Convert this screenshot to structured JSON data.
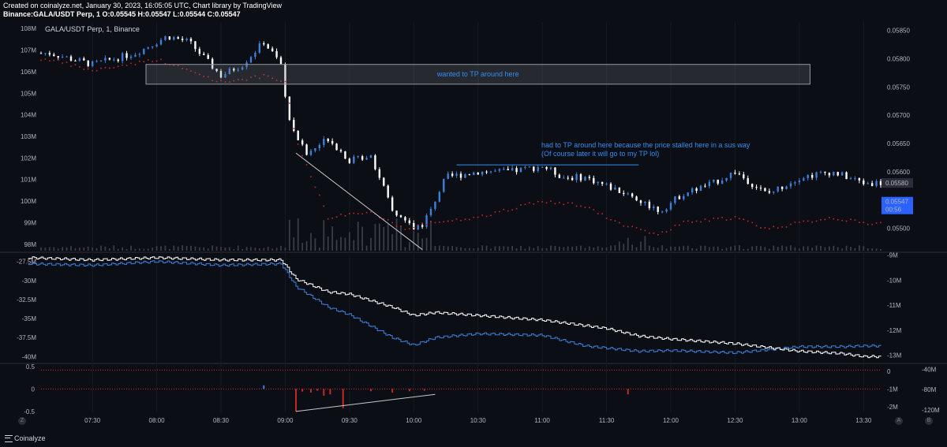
{
  "header": {
    "line1": "Created on coinalyze.net, January 30, 2023, 16:05:05 UTC, Chart library by TradingView",
    "line2": "Binance:GALA/USDT Perp, 1 O:0.05545 H:0.05547 L:0.05544 C:0.05547"
  },
  "brand": {
    "label": "Coinalyze"
  },
  "corner_buttons": {
    "left": "Z",
    "auto": "A",
    "log": "B"
  },
  "colors": {
    "up": "#3d7fd9",
    "down": "#ffffff",
    "oi": "#ffffff",
    "cvd": "#3d7fd9",
    "red": "#c62828",
    "note": "#2f8ef0",
    "bg": "#0c0e15"
  },
  "chart_data": [
    {
      "type": "candlestick",
      "symbol_label": "GALA/USDT Perp, 1, Binance",
      "ylim": [
        0.0546,
        0.05865
      ],
      "y_ticks": [
        "0.05850",
        "0.05800",
        "0.05750",
        "0.05700",
        "0.05650",
        "0.05600",
        "0.05500"
      ],
      "y_tick_values": [
        0.0585,
        0.058,
        0.0575,
        0.057,
        0.0565,
        0.056,
        0.055
      ],
      "left_axis_ticks": [
        "108M",
        "107M",
        "106M",
        "105M",
        "104M",
        "103M",
        "102M",
        "101M",
        "100M",
        "99M",
        "98M"
      ],
      "left_axis_values": [
        108,
        107,
        106,
        105,
        104,
        103,
        102,
        101,
        100,
        99,
        98
      ],
      "last_price_label": "0.05580",
      "current_price_label": "0.05547",
      "countdown": "00:56",
      "x_ticks": [
        "07:30",
        "08:00",
        "08:30",
        "09:00",
        "09:30",
        "10:00",
        "10:30",
        "11:00",
        "11:30",
        "12:00",
        "12:30",
        "13:00",
        "13:30"
      ],
      "price_path": [
        [
          "07:10",
          0.0581
        ],
        [
          "07:30",
          0.0579
        ],
        [
          "07:50",
          0.0581
        ],
        [
          "08:05",
          0.0584
        ],
        [
          "08:15",
          0.0583
        ],
        [
          "08:30",
          0.0577
        ],
        [
          "08:40",
          0.0579
        ],
        [
          "08:50",
          0.0583
        ],
        [
          "08:58",
          0.0579
        ],
        [
          "09:00",
          0.0573
        ],
        [
          "09:03",
          0.0568
        ],
        [
          "09:10",
          0.0563
        ],
        [
          "09:20",
          0.0566
        ],
        [
          "09:30",
          0.0562
        ],
        [
          "09:40",
          0.0563
        ],
        [
          "09:50",
          0.0553
        ],
        [
          "10:00",
          0.055
        ],
        [
          "10:05",
          0.0551
        ],
        [
          "10:15",
          0.0559
        ],
        [
          "10:30",
          0.056
        ],
        [
          "10:45",
          0.056
        ],
        [
          "11:00",
          0.0561
        ],
        [
          "11:10",
          0.0559
        ],
        [
          "11:20",
          0.0559
        ],
        [
          "11:40",
          0.0556
        ],
        [
          "11:55",
          0.0553
        ],
        [
          "12:05",
          0.0556
        ],
        [
          "12:20",
          0.0558
        ],
        [
          "12:30",
          0.056
        ],
        [
          "12:45",
          0.0556
        ],
        [
          "13:00",
          0.0559
        ],
        [
          "13:15",
          0.056
        ],
        [
          "13:30",
          0.0558
        ]
      ],
      "oi_dots_path": [
        [
          "07:10",
          0.058
        ],
        [
          "07:30",
          0.0578
        ],
        [
          "08:00",
          0.058
        ],
        [
          "08:30",
          0.0576
        ],
        [
          "08:50",
          0.0577
        ],
        [
          "09:00",
          0.0576
        ],
        [
          "09:05",
          0.0566
        ],
        [
          "09:20",
          0.0552
        ],
        [
          "09:40",
          0.0553
        ],
        [
          "09:55",
          0.055
        ],
        [
          "10:05",
          0.0551
        ],
        [
          "10:30",
          0.0552
        ],
        [
          "11:00",
          0.0555
        ],
        [
          "11:20",
          0.0554
        ],
        [
          "11:35",
          0.0551
        ],
        [
          "11:55",
          0.0549
        ],
        [
          "12:05",
          0.0551
        ],
        [
          "12:30",
          0.0552
        ],
        [
          "12:45",
          0.055
        ],
        [
          "13:15",
          0.0552
        ],
        [
          "13:30",
          0.0551
        ]
      ],
      "annotations": [
        {
          "text": "wanted to TP around here",
          "time_range": [
            "07:55",
            "13:05"
          ],
          "price_range": [
            0.05755,
            0.0579
          ]
        },
        {
          "text": "had to TP around here because the price stalled here in a sus way",
          "time": "11:00",
          "price": 0.05645
        },
        {
          "text": "(Of course later it will go to my TP lol)",
          "time": "11:00",
          "price": 0.0563
        }
      ]
    },
    {
      "type": "line",
      "series": [
        {
          "values_axis": "left",
          "ticks": [
            "-27.5M",
            "-30M",
            "-32.5M",
            "-35M",
            "-37.5M",
            "-40M"
          ],
          "tick_values": [
            -27.5,
            -30,
            -32.5,
            -35,
            -37.5,
            -40
          ],
          "ylim": [
            -40.8,
            -26.5
          ]
        },
        {
          "values_axis": "right",
          "ticks": [
            "-9M",
            "-10M",
            "-11M",
            "-12M",
            "-13M"
          ],
          "tick_values": [
            -9,
            -10,
            -11,
            -12,
            -13
          ],
          "ylim": [
            -13.3,
            -8.95
          ]
        }
      ],
      "white_line": [
        [
          "07:00",
          -27.0
        ],
        [
          "07:30",
          -27.3
        ],
        [
          "08:00",
          -27.0
        ],
        [
          "08:30",
          -27.3
        ],
        [
          "08:58",
          -27.3
        ],
        [
          "09:05",
          -29.8
        ],
        [
          "09:20",
          -31.5
        ],
        [
          "09:30",
          -31.8
        ],
        [
          "09:50",
          -33.5
        ],
        [
          "10:00",
          -34.6
        ],
        [
          "10:10",
          -34.2
        ],
        [
          "10:30",
          -34.6
        ],
        [
          "11:00",
          -35.2
        ],
        [
          "11:30",
          -36.3
        ],
        [
          "11:45",
          -37.3
        ],
        [
          "12:00",
          -37.7
        ],
        [
          "12:30",
          -38.3
        ],
        [
          "13:00",
          -39.3
        ],
        [
          "13:20",
          -39.6
        ],
        [
          "13:30",
          -40.0
        ]
      ],
      "blue_line": [
        [
          "07:00",
          -27.8
        ],
        [
          "07:30",
          -28.0
        ],
        [
          "08:00",
          -27.5
        ],
        [
          "08:30",
          -28.0
        ],
        [
          "08:58",
          -27.8
        ],
        [
          "09:05",
          -30.8
        ],
        [
          "09:20",
          -33.5
        ],
        [
          "09:30",
          -34.5
        ],
        [
          "09:50",
          -37.5
        ],
        [
          "10:00",
          -38.5
        ],
        [
          "10:10",
          -37.5
        ],
        [
          "10:30",
          -37.0
        ],
        [
          "11:00",
          -37.2
        ],
        [
          "11:20",
          -38.6
        ],
        [
          "11:45",
          -39.3
        ],
        [
          "12:00",
          -39.2
        ],
        [
          "12:30",
          -39.5
        ],
        [
          "13:00",
          -38.7
        ],
        [
          "13:20",
          -38.7
        ],
        [
          "13:30",
          -38.6
        ]
      ]
    },
    {
      "type": "bar",
      "left_ticks": [
        "0.5",
        "0",
        "-0.5"
      ],
      "left_tick_values": [
        0.5,
        0,
        -0.5
      ],
      "mid_ticks": [
        "0",
        "-1M",
        "-2M"
      ],
      "mid_tick_values": [
        0,
        -1,
        -2
      ],
      "right_ticks": [
        "-40M",
        "-80M",
        "-120M"
      ],
      "right_tick_values": [
        -40,
        -80,
        -120
      ],
      "ylim": [
        -0.52,
        0.55
      ],
      "bars": [
        [
          "08:50",
          0.08
        ],
        [
          "09:05",
          -0.5
        ],
        [
          "09:08",
          -0.06
        ],
        [
          "09:12",
          -0.08
        ],
        [
          "09:15",
          -0.04
        ],
        [
          "09:18",
          -0.15
        ],
        [
          "09:21",
          -0.12
        ],
        [
          "09:27",
          -0.43
        ],
        [
          "09:40",
          -0.05
        ],
        [
          "09:50",
          -0.08
        ],
        [
          "09:58",
          -0.05
        ],
        [
          "10:05",
          -0.04
        ],
        [
          "11:40",
          -0.12
        ]
      ],
      "trend_line": [
        [
          "09:05",
          -0.5
        ],
        [
          "10:10",
          -0.12
        ]
      ]
    }
  ]
}
